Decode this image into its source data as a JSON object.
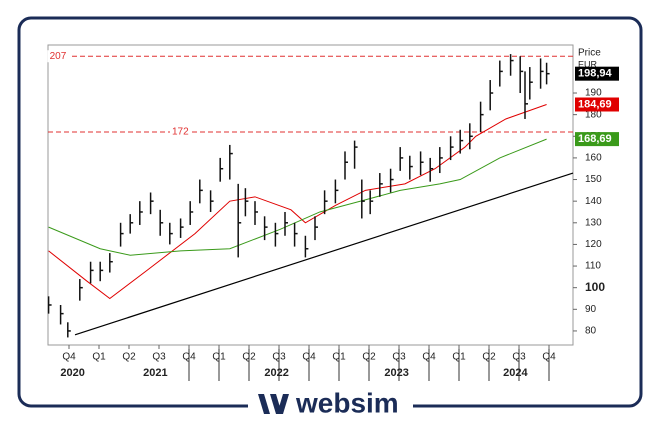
{
  "chart_data": {
    "type": "candlestick",
    "y_label": "Price",
    "unit": "EUR",
    "x": [
      2020.58,
      2020.68,
      2020.74,
      2020.84,
      2020.93,
      2021.01,
      2021.09,
      2021.18,
      2021.26,
      2021.34,
      2021.43,
      2021.51,
      2021.59,
      2021.68,
      2021.76,
      2021.84,
      2021.93,
      2022.01,
      2022.09,
      2022.16,
      2022.22,
      2022.3,
      2022.38,
      2022.47,
      2022.55,
      2022.63,
      2022.72,
      2022.8,
      2022.88,
      2022.97,
      2023.05,
      2023.13,
      2023.19,
      2023.26,
      2023.34,
      2023.43,
      2023.51,
      2023.59,
      2023.68,
      2023.76,
      2023.84,
      2023.93,
      2024.01,
      2024.09,
      2024.18,
      2024.26,
      2024.34,
      2024.43,
      2024.51,
      2024.55,
      2024.59,
      2024.68,
      2024.73
    ],
    "close": [
      92,
      88,
      80,
      100,
      108,
      108,
      112,
      125,
      130,
      135,
      140,
      130,
      125,
      128,
      135,
      145,
      140,
      155,
      162,
      130,
      140,
      135,
      128,
      125,
      130,
      125,
      118,
      128,
      140,
      145,
      158,
      165,
      140,
      140,
      148,
      150,
      160,
      156,
      158,
      155,
      160,
      165,
      168,
      170,
      180,
      190,
      200,
      205,
      200,
      185,
      195,
      200,
      198.94
    ],
    "high": [
      96,
      92,
      84,
      104,
      112,
      112,
      116,
      130,
      134,
      140,
      144,
      136,
      130,
      132,
      140,
      150,
      145,
      160,
      166,
      148,
      146,
      140,
      133,
      130,
      135,
      130,
      124,
      133,
      145,
      150,
      163,
      168,
      150,
      145,
      153,
      155,
      165,
      161,
      163,
      160,
      165,
      170,
      173,
      176,
      186,
      196,
      205,
      208,
      207,
      200,
      202,
      206,
      204
    ],
    "low": [
      88,
      83,
      77,
      94,
      102,
      103,
      107,
      119,
      125,
      129,
      134,
      124,
      120,
      123,
      129,
      139,
      135,
      149,
      150,
      114,
      133,
      129,
      122,
      119,
      124,
      119,
      114,
      122,
      134,
      139,
      150,
      155,
      132,
      134,
      142,
      144,
      154,
      150,
      152,
      149,
      153,
      159,
      162,
      164,
      172,
      182,
      193,
      198,
      190,
      178,
      187,
      192,
      194
    ],
    "color": "#111",
    "ma": [
      {
        "color": "#e00000",
        "x": [
          2020.58,
          2020.9,
          2021.09,
          2021.4,
          2021.8,
          2022.09,
          2022.3,
          2022.6,
          2022.72,
          2022.97,
          2023.22,
          2023.55,
          2023.8,
          2024.05,
          2024.14,
          2024.39,
          2024.73
        ],
        "values": [
          117,
          103,
          95,
          108,
          125,
          140,
          142,
          136,
          130,
          138,
          145,
          148,
          155,
          165,
          170,
          178,
          184.69
        ]
      },
      {
        "color": "#3a9a1a",
        "x": [
          2020.58,
          2021.01,
          2021.26,
          2021.68,
          2022.09,
          2022.51,
          2022.84,
          2023.18,
          2023.51,
          2023.84,
          2024.01,
          2024.34,
          2024.73
        ],
        "values": [
          128,
          118,
          115,
          117,
          118,
          127,
          135,
          140,
          145,
          148,
          150,
          160,
          168.69
        ]
      }
    ],
    "trendline": {
      "color": "#000",
      "x": [
        2020.8,
        2024.95
      ],
      "values": [
        78.2,
        153
      ]
    },
    "hlines": [
      {
        "value": 207,
        "label": "207",
        "label_x": 2020.58
      },
      {
        "value": 172,
        "label": "172",
        "label_x": 2021.6
      }
    ],
    "last_values": [
      {
        "value": 198.94,
        "label": "198,94",
        "color": "#000"
      },
      {
        "value": 184.69,
        "label": "184,69",
        "color": "#e00000"
      },
      {
        "value": 168.69,
        "label": "168,69",
        "color": "#3a9a1a"
      }
    ],
    "xlim": [
      2020.575,
      2024.95
    ],
    "ylim": [
      73.5,
      212.2
    ],
    "yticks": [
      80,
      90,
      100,
      110,
      120,
      130,
      140,
      150,
      160,
      170,
      180,
      190
    ],
    "xticks": [
      {
        "value": 2020.75,
        "label": "Q4"
      },
      {
        "value": 2021,
        "label": "Q1"
      },
      {
        "value": 2021.25,
        "label": "Q2"
      },
      {
        "value": 2021.5,
        "label": "Q3"
      },
      {
        "value": 2021.75,
        "label": "Q4"
      },
      {
        "value": 2022,
        "label": "Q1"
      },
      {
        "value": 2022.25,
        "label": "Q2"
      },
      {
        "value": 2022.5,
        "label": "Q3"
      },
      {
        "value": 2022.75,
        "label": "Q4"
      },
      {
        "value": 2023,
        "label": "Q1"
      },
      {
        "value": 2023.25,
        "label": "Q2"
      },
      {
        "value": 2023.5,
        "label": "Q3"
      },
      {
        "value": 2023.75,
        "label": "Q4"
      },
      {
        "value": 2024,
        "label": "Q1"
      },
      {
        "value": 2024.25,
        "label": "Q2"
      },
      {
        "value": 2024.5,
        "label": "Q3"
      },
      {
        "value": 2024.75,
        "label": "Q4"
      }
    ],
    "year_labels": [
      {
        "value": 2020.78,
        "label": "2020"
      },
      {
        "value": 2021.47,
        "label": "2021"
      },
      {
        "value": 2022.48,
        "label": "2022"
      },
      {
        "value": 2023.48,
        "label": "2023"
      },
      {
        "value": 2024.47,
        "label": "2024"
      }
    ]
  },
  "brand": "websim"
}
